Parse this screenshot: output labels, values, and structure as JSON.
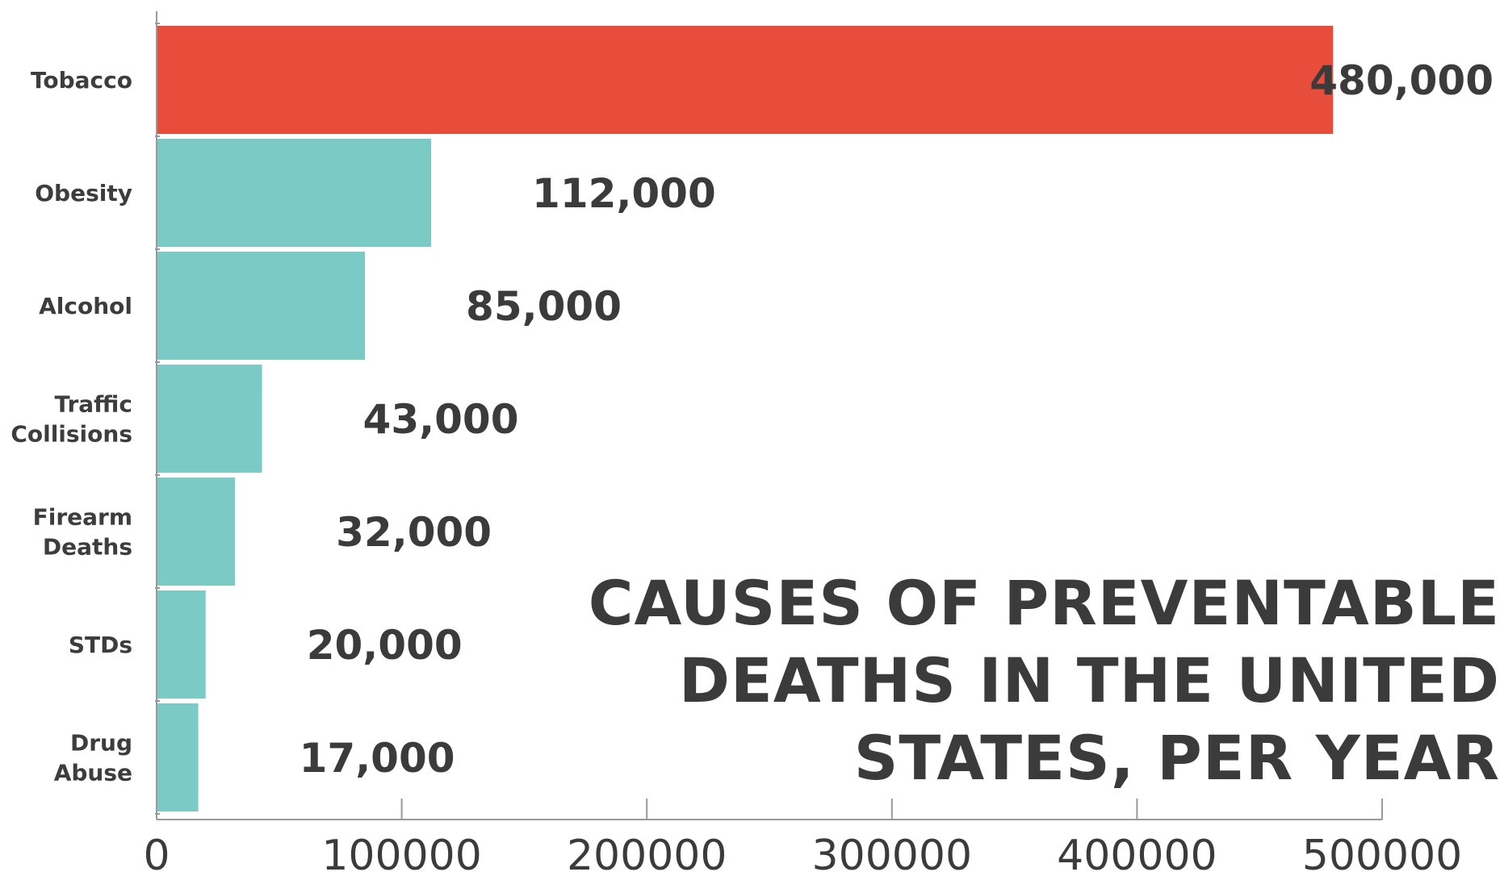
{
  "chart_data": {
    "type": "bar",
    "orientation": "horizontal",
    "title": "CAUSES OF PREVENTABLE DEATHS IN THE UNITED STATES, PER YEAR",
    "categories": [
      [
        "Tobacco"
      ],
      [
        "Obesity"
      ],
      [
        "Alcohol"
      ],
      [
        "Traffic",
        "Collisions"
      ],
      [
        "Firearm",
        "Deaths"
      ],
      [
        "STDs"
      ],
      [
        "Drug",
        "Abuse"
      ]
    ],
    "values": [
      480000,
      112000,
      85000,
      43000,
      32000,
      20000,
      17000
    ],
    "value_labels": [
      "480,000",
      "112,000",
      "85,000",
      "43,000",
      "32,000",
      "20,000",
      "17,000"
    ],
    "bar_colors": [
      "#e84c3b",
      "#7ccac5",
      "#7ccac5",
      "#7ccac5",
      "#7ccac5",
      "#7ccac5",
      "#7ccac5"
    ],
    "xlim": [
      0,
      500000
    ],
    "x_ticks": [
      0,
      100000,
      200000,
      300000,
      400000,
      500000
    ],
    "x_tick_labels": [
      "0",
      "100000",
      "200000",
      "300000",
      "400000",
      "500000"
    ],
    "xlabel": "",
    "ylabel": "",
    "grid": false,
    "legend": "none"
  }
}
